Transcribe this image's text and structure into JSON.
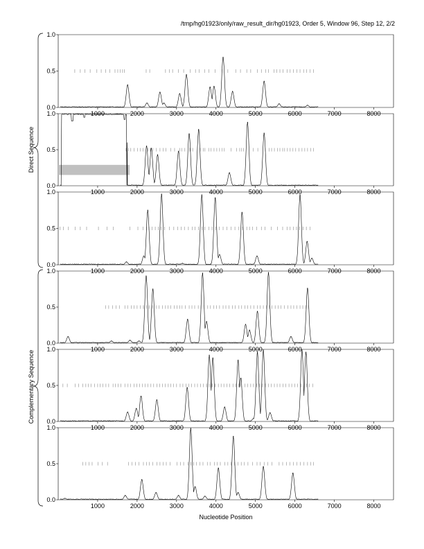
{
  "header": {
    "title": "/tmp/hg01923/only/raw_result_dir/hg01923, Order 5, Window 96, Step 12, 2/2"
  },
  "axis": {
    "xlabel": "Nucleotide Position"
  },
  "groups": {
    "direct": "Direct Sequence",
    "complementary": "Complementary Sequence"
  },
  "colors": {
    "line": "#000000",
    "band": "#c0c0c0",
    "ticks": "#888888"
  },
  "chart_data": [
    {
      "type": "line",
      "panel": 1,
      "xlim": [
        0,
        8500
      ],
      "ylim": [
        0,
        1
      ],
      "xticks": [
        1000,
        2000,
        3000,
        4000,
        5000,
        6000,
        7000,
        8000
      ],
      "xtick_labels": [
        "1000",
        "2000",
        "3000",
        "4000",
        "5000",
        "6000",
        "7000",
        "8000"
      ],
      "yticks": [
        0,
        0.5,
        1
      ],
      "ytick_labels": [
        "0.0",
        "0.5",
        "1.0"
      ],
      "peaks": [
        [
          1760,
          0.31
        ],
        [
          2250,
          0.06
        ],
        [
          2580,
          0.21
        ],
        [
          2680,
          0.06
        ],
        [
          3080,
          0.19
        ],
        [
          3250,
          0.45
        ],
        [
          3850,
          0.28
        ],
        [
          3950,
          0.29
        ],
        [
          4180,
          0.69
        ],
        [
          4420,
          0.22
        ],
        [
          5220,
          0.36
        ],
        [
          5600,
          0.05
        ],
        [
          6320,
          0.03
        ]
      ],
      "marks": [
        420,
        560,
        680,
        810,
        980,
        1090,
        1200,
        1310,
        1440,
        1510,
        1570,
        1630,
        1680,
        2230,
        2320,
        2720,
        2820,
        2900,
        3050,
        3180,
        3350,
        3480,
        3570,
        3710,
        3820,
        3980,
        4150,
        4300,
        4500,
        4620,
        4780,
        4880,
        5050,
        5150,
        5260,
        5330,
        5470,
        5540,
        5620,
        5700,
        5800,
        5880,
        5960,
        6050,
        6130,
        6220,
        6300,
        6380,
        6470
      ]
    },
    {
      "type": "line",
      "panel": 2,
      "xlim": [
        0,
        8500
      ],
      "ylim": [
        0,
        1
      ],
      "xticks": [
        1000,
        2000,
        3000,
        4000,
        5000,
        6000,
        7000,
        8000
      ],
      "xtick_labels": [
        "1000",
        "2000",
        "3000",
        "4000",
        "5000",
        "6000",
        "7000",
        "8000"
      ],
      "yticks": [
        0,
        0.5,
        1
      ],
      "ytick_labels": [
        "0.0",
        "0.5",
        "1.0"
      ],
      "plateau": [
        0,
        1740,
        1.0
      ],
      "band": [
        0,
        1810,
        0.15,
        0.29
      ],
      "peaks": [
        [
          2240,
          0.55
        ],
        [
          2360,
          0.52
        ],
        [
          2520,
          0.43
        ],
        [
          3050,
          0.48
        ],
        [
          3320,
          0.72
        ],
        [
          3560,
          0.78
        ],
        [
          4340,
          0.18
        ],
        [
          4800,
          0.88
        ],
        [
          5220,
          0.73
        ]
      ],
      "marks": [
        1720,
        1780,
        1840,
        1920,
        2010,
        2080,
        2150,
        2270,
        2340,
        2400,
        2490,
        2580,
        2660,
        2730,
        2850,
        2950,
        3080,
        3130,
        3210,
        3340,
        3410,
        3600,
        3680,
        3720,
        3820,
        3870,
        3950,
        4020,
        4090,
        4150,
        4210,
        4380,
        4520,
        4600,
        4650,
        4700,
        4940,
        5060,
        5250,
        5350,
        5410,
        5480,
        5560,
        5620,
        5690,
        5740,
        5810,
        5880,
        5950,
        6020,
        6100,
        6180,
        6250,
        6320,
        6400,
        6470
      ]
    },
    {
      "type": "line",
      "panel": 3,
      "xlim": [
        0,
        8500
      ],
      "ylim": [
        0,
        1
      ],
      "xticks": [
        1000,
        2000,
        3000,
        4000,
        5000,
        6000,
        7000,
        8000
      ],
      "xtick_labels": [
        "1000",
        "2000",
        "3000",
        "4000",
        "5000",
        "6000",
        "7000",
        "8000"
      ],
      "yticks": [
        0,
        0.5,
        1
      ],
      "ytick_labels": [
        "0.0",
        "0.5",
        "1.0"
      ],
      "peaks": [
        [
          1730,
          0.04
        ],
        [
          2170,
          0.12
        ],
        [
          2270,
          0.75
        ],
        [
          2620,
          0.97
        ],
        [
          3150,
          0.02
        ],
        [
          3640,
          0.96
        ],
        [
          3980,
          0.92
        ],
        [
          4090,
          0.14
        ],
        [
          4660,
          0.72
        ],
        [
          5040,
          0.12
        ],
        [
          6130,
          0.96
        ],
        [
          6310,
          0.32
        ],
        [
          6430,
          0.09
        ]
      ],
      "marks": [
        50,
        130,
        260,
        430,
        560,
        720,
        1020,
        1240,
        1400,
        1820,
        2020,
        2150,
        2240,
        2300,
        2380,
        2460,
        2540,
        2610,
        2700,
        2820,
        2930,
        3030,
        3120,
        3200,
        3300,
        3400,
        3470,
        3560,
        3650,
        3720,
        3820,
        3900,
        4000,
        4080,
        4180,
        4280,
        4380,
        4480,
        4580,
        4670,
        4780,
        4850,
        4930,
        5030,
        5150,
        5240,
        5400,
        5560,
        5690,
        5800,
        5880,
        5960,
        6040,
        6120,
        6210,
        6290,
        6380
      ]
    },
    {
      "type": "line",
      "panel": 4,
      "xlim": [
        0,
        8500
      ],
      "ylim": [
        0,
        1
      ],
      "xticks": [
        1000,
        2000,
        3000,
        4000,
        5000,
        6000,
        7000,
        8000
      ],
      "xtick_labels": [
        "1000",
        "2000",
        "3000",
        "4000",
        "5000",
        "6000",
        "7000",
        "8000"
      ],
      "yticks": [
        0,
        0.5,
        1
      ],
      "ytick_labels": [
        "0.0",
        "0.5",
        "1.0"
      ],
      "peaks": [
        [
          250,
          0.09
        ],
        [
          1350,
          0.03
        ],
        [
          1820,
          0.04
        ],
        [
          2050,
          0.03
        ],
        [
          2230,
          0.93
        ],
        [
          2400,
          0.75
        ],
        [
          3280,
          0.33
        ],
        [
          3660,
          0.97
        ],
        [
          3760,
          0.3
        ],
        [
          4750,
          0.26
        ],
        [
          4850,
          0.18
        ],
        [
          5050,
          0.44
        ],
        [
          5330,
          0.98
        ],
        [
          5900,
          0.09
        ],
        [
          6320,
          0.76
        ]
      ],
      "marks": [
        1200,
        1280,
        1380,
        1470,
        1550,
        1690,
        1760,
        1850,
        1920,
        2000,
        2080,
        2160,
        2240,
        2310,
        2390,
        2480,
        2560,
        2640,
        2720,
        2780,
        2850,
        2940,
        3010,
        3080,
        3140,
        3220,
        3320,
        3390,
        3460,
        3550,
        3620,
        3700,
        3790,
        3860,
        3940,
        4010,
        4090,
        4180,
        4250,
        4330,
        4420,
        4490,
        4580,
        4650,
        4730,
        4800,
        4880,
        4960,
        5050,
        5120,
        5200,
        5280,
        5350,
        5420,
        5500,
        5580,
        5650,
        5730,
        5820,
        5900,
        5970,
        6050,
        6130,
        6200,
        6280,
        6350
      ]
    },
    {
      "type": "line",
      "panel": 5,
      "xlim": [
        0,
        8500
      ],
      "ylim": [
        0,
        1
      ],
      "xticks": [
        1000,
        2000,
        3000,
        4000,
        5000,
        6000,
        7000,
        8000
      ],
      "xtick_labels": [
        "1000",
        "2000",
        "3000",
        "4000",
        "5000",
        "6000",
        "7000",
        "8000"
      ],
      "yticks": [
        0,
        0.5,
        1
      ],
      "ytick_labels": [
        "0.0",
        "0.5",
        "1.0"
      ],
      "peaks": [
        [
          1760,
          0.13
        ],
        [
          1980,
          0.18
        ],
        [
          2100,
          0.35
        ],
        [
          2500,
          0.3
        ],
        [
          3270,
          0.47
        ],
        [
          3830,
          0.92
        ],
        [
          3920,
          0.88
        ],
        [
          4220,
          0.2
        ],
        [
          4560,
          0.85
        ],
        [
          4630,
          0.6
        ],
        [
          4950,
          0.04
        ],
        [
          5050,
          0.96
        ],
        [
          5200,
          0.99
        ],
        [
          5370,
          0.12
        ],
        [
          6180,
          0.99
        ],
        [
          6280,
          0.96
        ]
      ],
      "marks": [
        120,
        230,
        430,
        520,
        620,
        700,
        760,
        830,
        920,
        1000,
        1060,
        1130,
        1210,
        1280,
        1390,
        1450,
        1520,
        1590,
        1690,
        1770,
        1830,
        1920,
        1990,
        2060,
        2130,
        2200,
        2270,
        2350,
        2420,
        2500,
        2570,
        2640,
        2710,
        2790,
        2850,
        2920,
        3000,
        3090,
        3160,
        3240,
        3310,
        3380,
        3460,
        3530,
        3610,
        3680,
        3760,
        3830,
        3910,
        3980,
        4060,
        4130,
        4200,
        4280,
        4350,
        4430,
        4500,
        4580,
        4650,
        4730,
        4800,
        4880,
        4950,
        5030,
        5100,
        5180,
        5250,
        5330,
        5400,
        5480,
        5550,
        5620,
        5700,
        5770,
        5850,
        5920,
        6000,
        6070,
        6150,
        6220,
        6300,
        6370,
        6450
      ]
    },
    {
      "type": "line",
      "panel": 6,
      "xlim": [
        0,
        8500
      ],
      "ylim": [
        0,
        1
      ],
      "xticks": [
        1000,
        2000,
        3000,
        4000,
        5000,
        6000,
        7000,
        8000
      ],
      "xtick_labels": [
        "1000",
        "2000",
        "3000",
        "4000",
        "5000",
        "6000",
        "7000",
        "8000"
      ],
      "yticks": [
        0,
        0.5,
        1
      ],
      "ytick_labels": [
        "0.0",
        "0.5",
        "1.0"
      ],
      "peaks": [
        [
          170,
          0.02
        ],
        [
          1700,
          0.06
        ],
        [
          2120,
          0.28
        ],
        [
          2480,
          0.1
        ],
        [
          3050,
          0.06
        ],
        [
          3360,
          0.99
        ],
        [
          3470,
          0.18
        ],
        [
          3720,
          0.05
        ],
        [
          4060,
          0.44
        ],
        [
          4440,
          0.88
        ],
        [
          4560,
          0.1
        ],
        [
          5200,
          0.46
        ],
        [
          5950,
          0.37
        ]
      ],
      "marks": [
        620,
        700,
        780,
        860,
        1010,
        1120,
        1250,
        1780,
        1870,
        1960,
        2050,
        2160,
        2240,
        2310,
        2400,
        2500,
        2580,
        2660,
        2740,
        2840,
        3010,
        3100,
        3180,
        3290,
        3360,
        3430,
        3500,
        3590,
        3670,
        3780,
        3850,
        3960,
        4030,
        4110,
        4220,
        4300,
        4380,
        4470,
        4560,
        4640,
        4720,
        4810,
        4930,
        5040,
        5120,
        5220,
        5310,
        5420,
        5600,
        5690,
        5790,
        5870,
        5960,
        6050,
        6140,
        6230,
        6320,
        6400,
        6470
      ]
    }
  ]
}
